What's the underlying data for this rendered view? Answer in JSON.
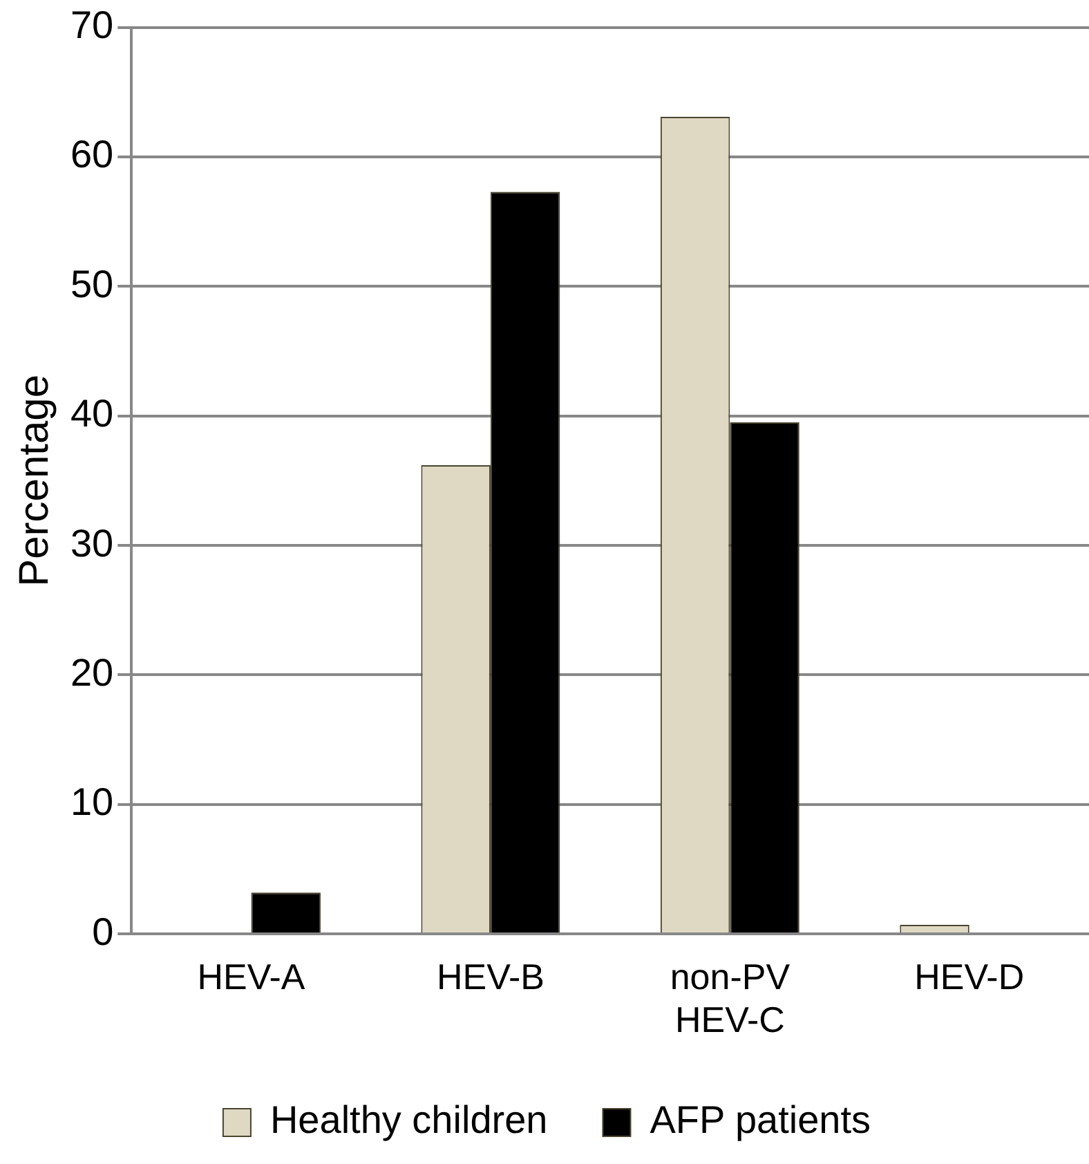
{
  "chart_data": {
    "type": "bar",
    "ylabel": "Percentage",
    "categories": [
      "HEV-A",
      "HEV-B",
      "non-PV\nHEV-C",
      "HEV-D"
    ],
    "series": [
      {
        "name": "Healthy children",
        "color": "#dfd9c3",
        "values": [
          0,
          36.2,
          63.1,
          0.7
        ]
      },
      {
        "name": "AFP patients",
        "color": "#000000",
        "values": [
          3.2,
          57.3,
          39.5,
          0
        ]
      }
    ],
    "ylim": [
      0,
      70
    ],
    "yticks": [
      0,
      10,
      20,
      30,
      40,
      50,
      60,
      70
    ],
    "grid": "y",
    "legend": "bottom"
  }
}
